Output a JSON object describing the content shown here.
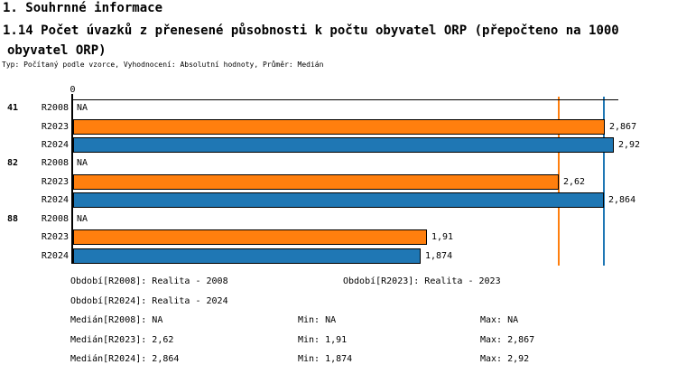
{
  "header": {
    "section": "1. Souhrnné informace",
    "title": "1.14 Počet úvazků z přenesené působnosti k počtu obyvatel ORP (přepočteno na 1000 obyvatel ORP)",
    "meta": "Typ: Počítaný podle vzorce, Vyhodnocení: Absolutní hodnoty, Průměr: Medián"
  },
  "chart_data": {
    "type": "bar",
    "orientation": "horizontal",
    "title": "1.14 Počet úvazků z přenesené působnosti k počtu obyvatel ORP (přepočteno na 1000 obyvatel ORP)",
    "x_axis": {
      "origin_label": "0",
      "min": 0,
      "max": 2.94,
      "gridlines": false
    },
    "legend_position": "bottom",
    "colors": {
      "R2023": "#ff7f0e",
      "R2024": "#1f77b4"
    },
    "na_text": "NA",
    "groups": [
      {
        "id": "41",
        "rows": [
          {
            "period": "R2008",
            "value": null,
            "display": "NA"
          },
          {
            "period": "R2023",
            "value": 2.867,
            "display": "2,867"
          },
          {
            "period": "R2024",
            "value": 2.92,
            "display": "2,92"
          }
        ]
      },
      {
        "id": "82",
        "rows": [
          {
            "period": "R2008",
            "value": null,
            "display": "NA"
          },
          {
            "period": "R2023",
            "value": 2.62,
            "display": "2,62"
          },
          {
            "period": "R2024",
            "value": 2.864,
            "display": "2,864"
          }
        ]
      },
      {
        "id": "88",
        "rows": [
          {
            "period": "R2008",
            "value": null,
            "display": "NA"
          },
          {
            "period": "R2023",
            "value": 1.91,
            "display": "1,91"
          },
          {
            "period": "R2024",
            "value": 1.874,
            "display": "1,874"
          }
        ]
      }
    ],
    "reference_lines": [
      {
        "name": "median-r2023",
        "value": 2.62,
        "color": "#ff7f0e"
      },
      {
        "name": "median-r2024",
        "value": 2.864,
        "color": "#1f77b4"
      }
    ]
  },
  "footer": {
    "period_lines": [
      {
        "text": "Období[R2008]: Realita - 2008"
      },
      {
        "text": "Období[R2023]: Realita - 2023"
      },
      {
        "text": "Období[R2024]: Realita - 2024"
      }
    ],
    "stat_lines": [
      {
        "median": "Medián[R2008]: NA",
        "min": "Min: NA",
        "max": "Max: NA"
      },
      {
        "median": "Medián[R2023]: 2,62",
        "min": "Min: 1,91",
        "max": "Max: 2,867"
      },
      {
        "median": "Medián[R2024]: 2,864",
        "min": "Min: 1,874",
        "max": "Max: 2,92"
      }
    ]
  }
}
